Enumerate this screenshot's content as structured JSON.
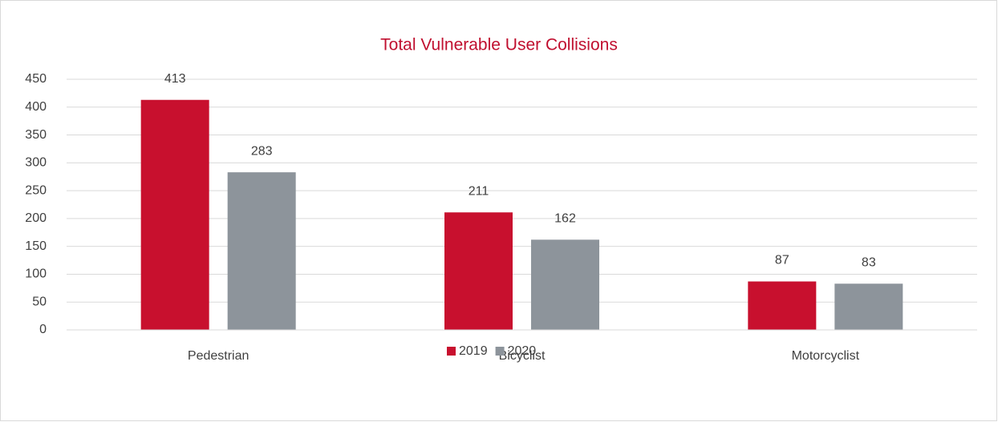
{
  "chart_data": {
    "type": "bar",
    "title": "Total Vulnerable User Collisions",
    "categories": [
      "Pedestrian",
      "Bicyclist",
      "Motorcyclist"
    ],
    "series": [
      {
        "name": "2019",
        "color": "#c8102e",
        "values": [
          413,
          211,
          87
        ]
      },
      {
        "name": "2020",
        "color": "#8d949b",
        "values": [
          283,
          162,
          83
        ]
      }
    ],
    "ylim": [
      0,
      450
    ],
    "yticks": [
      0,
      50,
      100,
      150,
      200,
      250,
      300,
      350,
      400,
      450
    ],
    "grid": true,
    "legend": "bottom"
  }
}
